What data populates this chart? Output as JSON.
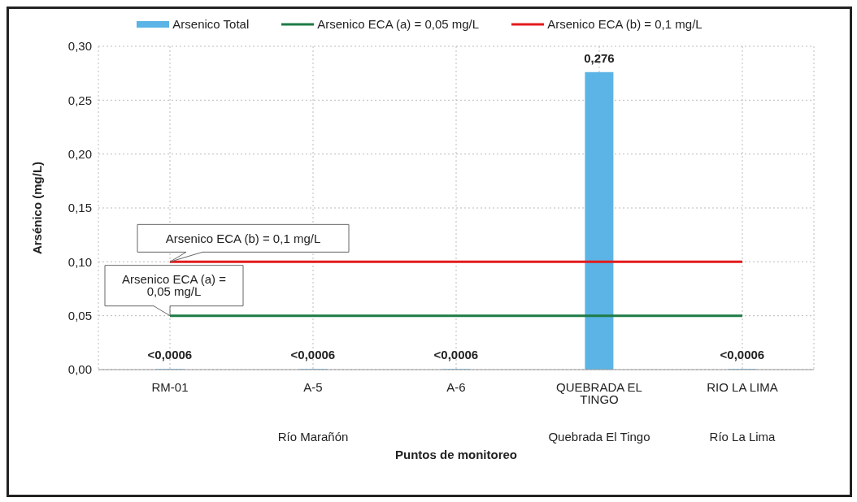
{
  "chart_data": {
    "type": "bar",
    "xlabel": "Puntos de monitoreo",
    "ylabel": "Arsénico (mg/L)",
    "categories": [
      "RM-01",
      "A-5",
      "A-6",
      "QUEBRADA EL TINGO",
      "RIO LA LIMA"
    ],
    "series": [
      {
        "name": "Arsenico Total",
        "color": "#5bb4e5",
        "values": [
          0.0006,
          0.0006,
          0.0006,
          0.276,
          0.0006
        ],
        "value_labels": [
          "<0,0006",
          "<0,0006",
          "<0,0006",
          "0,276",
          "<0,0006"
        ]
      },
      {
        "type": "line",
        "name": "Arsenico ECA (a) = 0,05 mg/L",
        "color": "#1e7b45",
        "values": [
          0.05,
          0.05,
          0.05,
          0.05,
          0.05
        ]
      },
      {
        "type": "line",
        "name": "Arsenico ECA (b) = 0,1 mg/L",
        "color": "#e31a1c",
        "values": [
          0.1,
          0.1,
          0.1,
          0.1,
          0.1
        ]
      }
    ],
    "ylim": [
      0,
      0.3
    ],
    "yticks": [
      {
        "value": 0,
        "label": "0,00"
      },
      {
        "value": 0.05,
        "label": "0,05"
      },
      {
        "value": 0.1,
        "label": "0,10"
      },
      {
        "value": 0.15,
        "label": "0,15"
      },
      {
        "value": 0.2,
        "label": "0,20"
      },
      {
        "value": 0.25,
        "label": "0,25"
      },
      {
        "value": 0.3,
        "label": "0,30"
      }
    ],
    "annotations": [
      {
        "text": "Arsenico ECA (b) = 0,1 mg/L",
        "x": "RM-01",
        "y": 0.1
      },
      {
        "text": "Arsenico ECA (a) = 0,05 mg/L",
        "x": "RM-01",
        "y": 0.05
      },
      "Río Marañón",
      "Quebrada El Tingo",
      "Río La Lima"
    ],
    "grid": true,
    "legend": "top",
    "marker": "none",
    "line_style": "solid"
  }
}
